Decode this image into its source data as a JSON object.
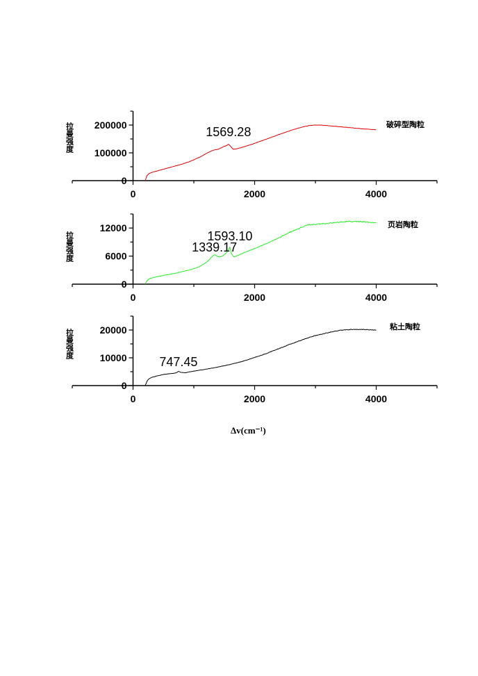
{
  "chart_data": [
    {
      "type": "line",
      "color": "#e00000",
      "ylabel": "拉曼强度",
      "series_label": "破碎型陶粒",
      "xlim": [
        -1000,
        5000
      ],
      "ylim": [
        0,
        250000
      ],
      "xticks": [
        0,
        2000,
        4000
      ],
      "yticks": [
        0,
        100000,
        200000
      ],
      "series": [
        {
          "name": "破碎型陶粒",
          "x": [
            200,
            230,
            260,
            300,
            400,
            500,
            600,
            700,
            800,
            900,
            1000,
            1100,
            1200,
            1300,
            1350,
            1400,
            1450,
            1500,
            1550,
            1570,
            1600,
            1650,
            1700,
            1800,
            2000,
            2200,
            2400,
            2600,
            2800,
            2900,
            3000,
            3100,
            3200,
            3400,
            3600,
            3800,
            4000
          ],
          "y": [
            0,
            18000,
            25000,
            29000,
            35000,
            41000,
            47000,
            53000,
            59000,
            66000,
            75000,
            85000,
            97000,
            108000,
            111000,
            113000,
            118000,
            123000,
            128000,
            131000,
            124000,
            113000,
            114000,
            120000,
            134000,
            150000,
            166000,
            181000,
            194000,
            198000,
            200000,
            199500,
            198000,
            194000,
            190000,
            186000,
            183000
          ]
        }
      ],
      "annotations": [
        {
          "x": 1569.28,
          "text": "1569.28"
        }
      ]
    },
    {
      "type": "line",
      "color": "#22ee22",
      "ylabel": "拉曼强度",
      "series_label": "页岩陶粒",
      "xlim": [
        -1000,
        5000
      ],
      "ylim": [
        0,
        15000
      ],
      "xticks": [
        0,
        2000,
        4000
      ],
      "yticks": [
        0,
        6000,
        12000
      ],
      "series": [
        {
          "name": "页岩陶粒",
          "x": [
            200,
            230,
            260,
            300,
            400,
            500,
            600,
            700,
            800,
            900,
            1000,
            1100,
            1200,
            1250,
            1300,
            1339,
            1380,
            1420,
            1470,
            1520,
            1560,
            1593,
            1620,
            1660,
            1700,
            1800,
            2000,
            2200,
            2400,
            2600,
            2800,
            2900,
            3000,
            3200,
            3400,
            3600,
            3800,
            4000
          ],
          "y": [
            0,
            700,
            1100,
            1300,
            1600,
            1850,
            2100,
            2350,
            2650,
            2950,
            3300,
            3800,
            4600,
            5200,
            5900,
            6300,
            6000,
            5800,
            6000,
            6500,
            7100,
            7900,
            6500,
            5800,
            6000,
            6600,
            7600,
            8700,
            9900,
            11200,
            12300,
            12700,
            12800,
            13000,
            13300,
            13400,
            13300,
            13100
          ]
        }
      ],
      "annotations": [
        {
          "x": 1339.17,
          "text": "1339.17"
        },
        {
          "x": 1593.1,
          "text": "1593.10"
        }
      ]
    },
    {
      "type": "line",
      "color": "#000000",
      "ylabel": "拉曼强度",
      "series_label": "粘土陶粒",
      "xlim": [
        -1000,
        5000
      ],
      "ylim": [
        0,
        25000
      ],
      "xticks": [
        0,
        2000,
        4000
      ],
      "yticks": [
        0,
        10000,
        20000
      ],
      "series": [
        {
          "name": "粘土陶粒",
          "x": [
            200,
            230,
            260,
            300,
            400,
            500,
            600,
            700,
            747,
            800,
            850,
            900,
            1000,
            1200,
            1400,
            1600,
            1800,
            2000,
            2200,
            2400,
            2600,
            2800,
            3000,
            3200,
            3400,
            3600,
            3800,
            4000
          ],
          "y": [
            0,
            1600,
            2400,
            2900,
            3500,
            4000,
            4300,
            4500,
            5100,
            4700,
            4600,
            4800,
            5200,
            5900,
            6700,
            7600,
            8700,
            10100,
            11600,
            13300,
            15000,
            16600,
            18000,
            19000,
            19900,
            20200,
            20200,
            20000
          ]
        }
      ],
      "annotations": [
        {
          "x": 747.45,
          "text": "747.45"
        }
      ]
    }
  ],
  "xlabel": "Δv(cm⁻¹)"
}
